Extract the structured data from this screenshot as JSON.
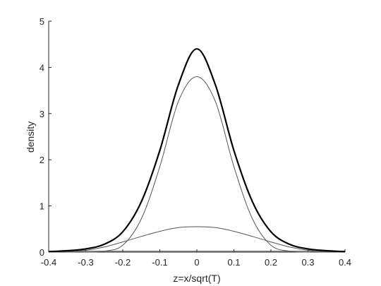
{
  "chart_data": {
    "type": "line",
    "title": "",
    "xlabel": "z=x/sqrt(T)",
    "ylabel": "density",
    "xlim": [
      -0.4,
      0.4
    ],
    "ylim": [
      0,
      5
    ],
    "xticks": [
      -0.4,
      -0.3,
      -0.2,
      -0.1,
      0,
      0.1,
      0.2,
      0.3,
      0.4
    ],
    "xtick_labels": [
      "-0.4",
      "-0.3",
      "-0.2",
      "-0.1",
      "0",
      "0.1",
      "0.2",
      "0.3",
      "0.4"
    ],
    "yticks": [
      0,
      1,
      2,
      3,
      4,
      5
    ],
    "ytick_labels": [
      "0",
      "1",
      "2",
      "3",
      "4",
      "5"
    ],
    "grid": false,
    "legend": "none",
    "x": [
      -0.4,
      -0.35,
      -0.3,
      -0.25,
      -0.2,
      -0.15,
      -0.1,
      -0.05,
      0,
      0.05,
      0.1,
      0.15,
      0.2,
      0.25,
      0.3,
      0.35,
      0.4
    ],
    "series": [
      {
        "values": [
          0.01,
          0.03,
          0.07,
          0.17,
          0.44,
          1.09,
          2.2,
          3.62,
          4.4,
          3.62,
          2.2,
          1.09,
          0.44,
          0.17,
          0.07,
          0.03,
          0.01
        ],
        "color": "#000000",
        "emphasis": "bold"
      },
      {
        "values": [
          0.0,
          0.0,
          0.0,
          0.02,
          0.15,
          0.72,
          1.85,
          3.26,
          3.8,
          3.26,
          1.85,
          0.72,
          0.15,
          0.02,
          0.0,
          0.0,
          0.0
        ],
        "color": "#555555"
      },
      {
        "values": [
          0.0,
          0.01,
          0.04,
          0.11,
          0.22,
          0.34,
          0.45,
          0.53,
          0.55,
          0.53,
          0.45,
          0.34,
          0.22,
          0.11,
          0.04,
          0.01,
          0.0
        ],
        "color": "#555555"
      },
      {
        "values": [
          0.02,
          0.02,
          0.02,
          0.02,
          0.02,
          0.02,
          0.02,
          0.02,
          0.02,
          0.02,
          0.02,
          0.02,
          0.02,
          0.02,
          0.02,
          0.02,
          0.02
        ],
        "color": "#555555"
      }
    ]
  }
}
